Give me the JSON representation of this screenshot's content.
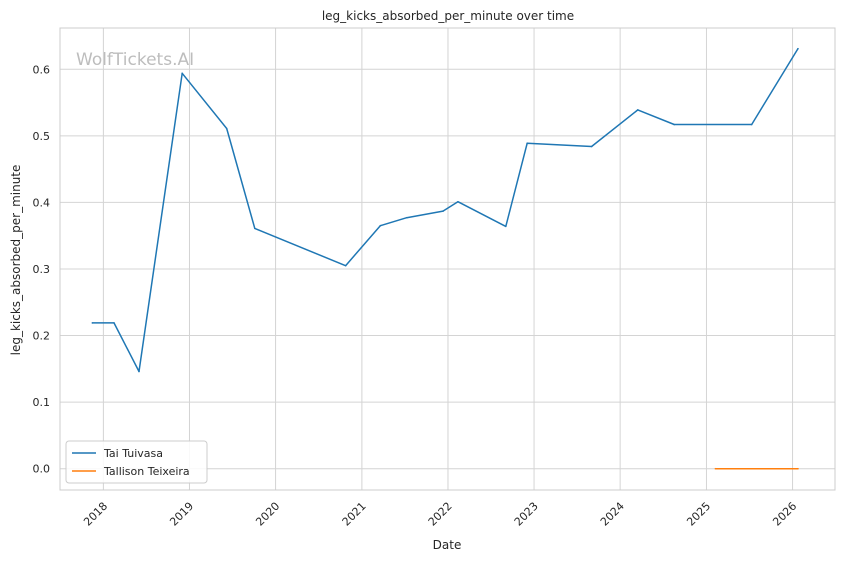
{
  "chart_data": {
    "type": "line",
    "title": "leg_kicks_absorbed_per_minute over time",
    "xlabel": "Date",
    "ylabel": "leg_kicks_absorbed_per_minute",
    "watermark": "WolfTickets.AI",
    "xlim": [
      "2017-07-01",
      "2026-06-30"
    ],
    "ylim": [
      -0.032,
      0.662
    ],
    "x_ticks": [
      "2018",
      "2019",
      "2020",
      "2021",
      "2022",
      "2023",
      "2024",
      "2025",
      "2026"
    ],
    "y_ticks": [
      "0.0",
      "0.1",
      "0.2",
      "0.3",
      "0.4",
      "0.5",
      "0.6"
    ],
    "grid": true,
    "legend_position": "lower-left",
    "series": [
      {
        "name": "Tai Tuivasa",
        "color": "#1f77b4",
        "points": [
          {
            "x": "2017-11-15",
            "y": 0.219
          },
          {
            "x": "2018-02-15",
            "y": 0.219
          },
          {
            "x": "2018-06-01",
            "y": 0.146
          },
          {
            "x": "2018-12-01",
            "y": 0.594
          },
          {
            "x": "2019-06-08",
            "y": 0.511
          },
          {
            "x": "2019-10-05",
            "y": 0.361
          },
          {
            "x": "2020-10-24",
            "y": 0.305
          },
          {
            "x": "2021-03-20",
            "y": 0.365
          },
          {
            "x": "2021-07-10",
            "y": 0.377
          },
          {
            "x": "2021-12-11",
            "y": 0.387
          },
          {
            "x": "2022-02-12",
            "y": 0.401
          },
          {
            "x": "2022-09-03",
            "y": 0.364
          },
          {
            "x": "2022-12-03",
            "y": 0.489
          },
          {
            "x": "2023-09-02",
            "y": 0.484
          },
          {
            "x": "2024-03-16",
            "y": 0.539
          },
          {
            "x": "2024-08-17",
            "y": 0.517
          },
          {
            "x": "2025-07-12",
            "y": 0.517
          },
          {
            "x": "2026-01-24",
            "y": 0.631
          }
        ]
      },
      {
        "name": "Tallison Teixeira",
        "color": "#ff7f0e",
        "points": [
          {
            "x": "2025-02-08",
            "y": 0.0
          },
          {
            "x": "2026-01-24",
            "y": 0.0
          }
        ]
      }
    ]
  }
}
